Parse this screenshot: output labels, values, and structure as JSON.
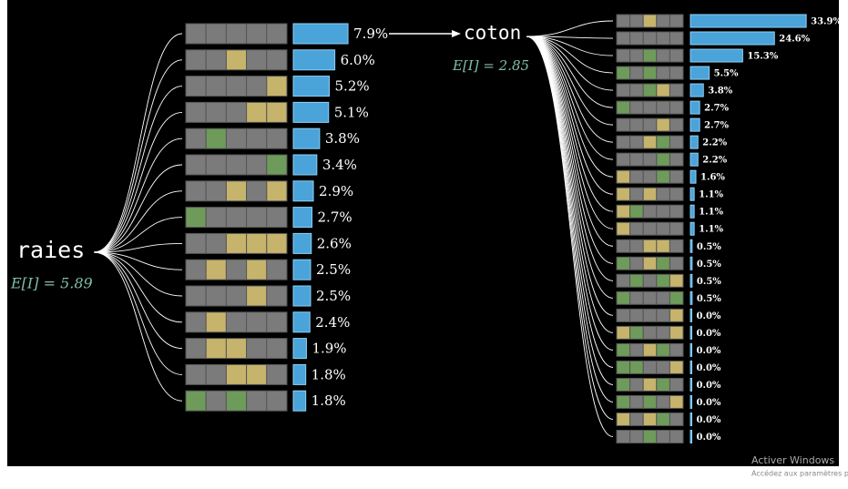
{
  "chart_data": [
    {
      "type": "bar",
      "title": "raies",
      "annotation": "E[I] = 5.89",
      "values": [
        7.9,
        6.0,
        5.2,
        5.1,
        3.8,
        3.4,
        2.9,
        2.7,
        2.6,
        2.5,
        2.5,
        2.4,
        1.9,
        1.8,
        1.8
      ],
      "value_labels": [
        "7.9%",
        "6.0%",
        "5.2%",
        "5.1%",
        "3.8%",
        "3.4%",
        "2.9%",
        "2.7%",
        "2.6%",
        "2.5%",
        "2.5%",
        "2.4%",
        "1.9%",
        "1.8%",
        "1.8%"
      ],
      "color": "#4aa3d9"
    },
    {
      "type": "bar",
      "title": "coton",
      "annotation": "E[I] = 2.85",
      "values": [
        33.9,
        24.6,
        15.3,
        5.5,
        3.8,
        2.7,
        2.7,
        2.2,
        2.2,
        1.6,
        1.1,
        1.1,
        1.1,
        0.5,
        0.5,
        0.5,
        0.5,
        0.0,
        0.0,
        0.0,
        0.0,
        0.0,
        0.0,
        0.0,
        0.0
      ],
      "value_labels": [
        "33.9%",
        "24.6%",
        "15.3%",
        "5.5%",
        "3.8%",
        "2.7%",
        "2.7%",
        "2.2%",
        "2.2%",
        "1.6%",
        "1.1%",
        "1.1%",
        "1.1%",
        "0.5%",
        "0.5%",
        "0.5%",
        "0.5%",
        "0.0%",
        "0.0%",
        "0.0%",
        "0.0%",
        "0.0%",
        "0.0%",
        "0.0%",
        "0.0%"
      ],
      "color": "#4aa3d9"
    }
  ],
  "watermark": {
    "title": "Activer Windows",
    "subtitle": "Accédez aux paramètres p"
  }
}
